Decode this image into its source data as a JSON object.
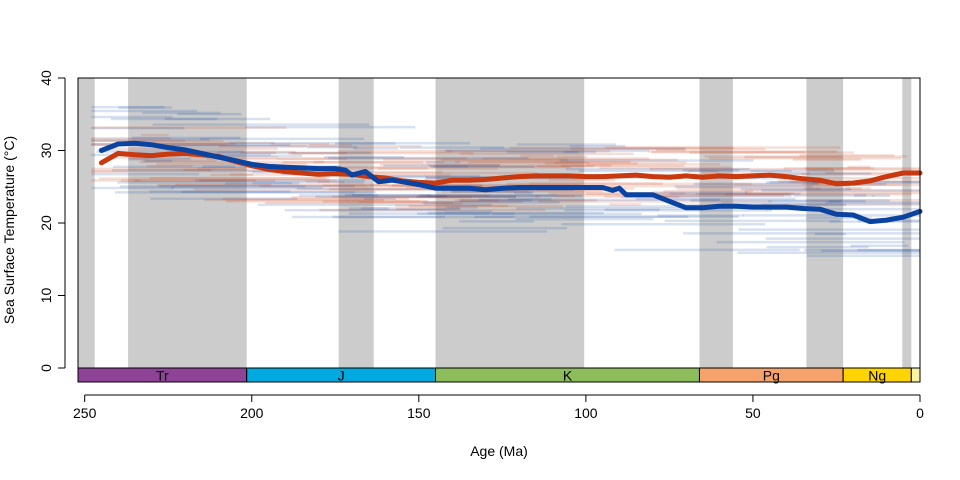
{
  "chart_data": {
    "type": "line",
    "title": "",
    "xlabel": "Age (Ma)",
    "ylabel": "Sea Surface Temperature (°C)",
    "xlim": [
      252,
      0
    ],
    "ylim": [
      0,
      40
    ],
    "x_reversed": true,
    "x_ticks": [
      250,
      200,
      150,
      100,
      50,
      0
    ],
    "y_ticks": [
      0,
      10,
      20,
      30,
      40
    ],
    "grid": false,
    "legend": "none",
    "shaded_intervals": [
      [
        252,
        247
      ],
      [
        237,
        201.5
      ],
      [
        174,
        163.5
      ],
      [
        145,
        100.5
      ],
      [
        66,
        56
      ],
      [
        34,
        23
      ],
      [
        5.3,
        2.6
      ]
    ],
    "periods": [
      {
        "label": "Tr",
        "start": 252,
        "end": 201.5,
        "color": "#8e4397"
      },
      {
        "label": "J",
        "start": 201.5,
        "end": 145,
        "color": "#00a9e0"
      },
      {
        "label": "K",
        "start": 145,
        "end": 66,
        "color": "#8cbd5a"
      },
      {
        "label": "Pg",
        "start": 66,
        "end": 23,
        "color": "#f5a36b"
      },
      {
        "label": "Ng",
        "start": 23,
        "end": 2.6,
        "color": "#ffd400"
      },
      {
        "label": "",
        "start": 2.6,
        "end": 0,
        "color": "#f9f3a6"
      }
    ],
    "series": [
      {
        "color": "#c8390f",
        "x": [
          245,
          240,
          235,
          230,
          225,
          220,
          215,
          210,
          205,
          200,
          195,
          190,
          185,
          180,
          175,
          170,
          165,
          160,
          155,
          150,
          145,
          140,
          135,
          130,
          125,
          120,
          115,
          110,
          105,
          100,
          95,
          90,
          85,
          80,
          75,
          70,
          65,
          60,
          55,
          50,
          45,
          40,
          35,
          30,
          25,
          20,
          15,
          10,
          5,
          0
        ],
        "values": [
          28.3,
          29.6,
          29.4,
          29.3,
          29.5,
          29.6,
          29.4,
          29.2,
          28.5,
          27.9,
          27.4,
          27.1,
          26.9,
          26.7,
          26.8,
          26.7,
          26.4,
          26.2,
          25.8,
          25.6,
          25.5,
          25.9,
          25.9,
          26.0,
          26.2,
          26.4,
          26.5,
          26.5,
          26.5,
          26.4,
          26.4,
          26.5,
          26.6,
          26.4,
          26.3,
          26.5,
          26.3,
          26.5,
          26.4,
          26.5,
          26.6,
          26.4,
          26.1,
          25.9,
          25.4,
          25.5,
          25.8,
          26.4,
          26.9,
          26.9
        ]
      },
      {
        "color": "#0b43a0",
        "x": [
          245,
          240,
          235,
          230,
          225,
          220,
          215,
          210,
          205,
          200,
          195,
          190,
          185,
          180,
          175,
          172,
          170,
          166,
          162,
          158,
          155,
          150,
          145,
          140,
          135,
          130,
          125,
          120,
          115,
          110,
          105,
          100,
          95,
          92,
          90,
          88,
          85,
          80,
          75,
          70,
          65,
          60,
          55,
          50,
          45,
          40,
          35,
          30,
          25,
          20,
          15,
          10,
          5,
          0
        ],
        "values": [
          30.0,
          30.9,
          31.0,
          30.8,
          30.4,
          30.1,
          29.6,
          29.1,
          28.6,
          28.1,
          27.8,
          27.7,
          27.6,
          27.5,
          27.5,
          27.3,
          26.6,
          27.1,
          25.7,
          25.9,
          25.7,
          25.3,
          24.8,
          24.8,
          24.8,
          24.6,
          24.8,
          24.9,
          24.9,
          24.9,
          24.9,
          24.9,
          24.9,
          24.5,
          24.8,
          23.9,
          23.9,
          23.9,
          23.0,
          22.1,
          22.1,
          22.3,
          22.3,
          22.2,
          22.2,
          22.2,
          22.0,
          21.9,
          21.2,
          21.1,
          20.2,
          20.4,
          20.8,
          21.6
        ]
      }
    ]
  }
}
